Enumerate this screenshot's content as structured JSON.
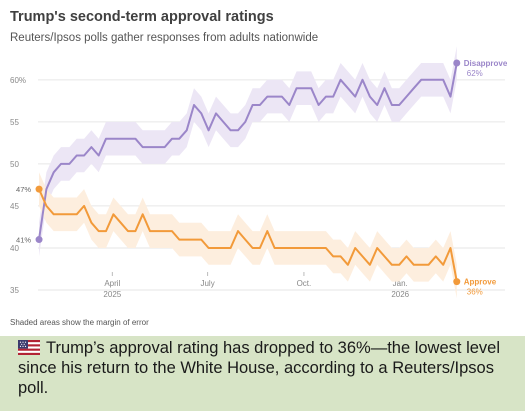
{
  "caption": {
    "text": "Trump’s approval rating has dropped to 36%—the lowest level since his return to the White House, according to a Reuters/Ipsos poll."
  },
  "chart_data": {
    "type": "line",
    "title": "Trump's second-term approval ratings",
    "subtitle": "Reuters/Ipsos polls gather responses from adults nationwide",
    "note": "Shaded areas show the margin of error",
    "xlabel": "",
    "ylabel": "",
    "ylim": [
      35,
      62
    ],
    "yticks": [
      {
        "value": 60,
        "label": "60%"
      },
      {
        "value": 55,
        "label": "55"
      },
      {
        "value": 50,
        "label": "50"
      },
      {
        "value": 45,
        "label": "45"
      },
      {
        "value": 40,
        "label": "40"
      },
      {
        "value": 35,
        "label": "35"
      }
    ],
    "xlim": [
      "2025-01-20",
      "2026-03-01"
    ],
    "xticks": [
      {
        "date": "2025-04-01",
        "label": "April",
        "sublabel": "2025"
      },
      {
        "date": "2025-07-01",
        "label": "July",
        "sublabel": ""
      },
      {
        "date": "2025-10-01",
        "label": "Oct.",
        "sublabel": ""
      },
      {
        "date": "2026-01-01",
        "label": "Jan.",
        "sublabel": "2026"
      }
    ],
    "grid": true,
    "legend": "direct labels at line ends",
    "series": [
      {
        "name": "Disapprove",
        "color": "#9b86c9",
        "band_color": "#ece6f5",
        "start_label": "41%",
        "end_value_label": "62%",
        "x": [
          "2025-01-21",
          "2025-01-28",
          "2025-02-04",
          "2025-02-11",
          "2025-02-19",
          "2025-02-26",
          "2025-03-05",
          "2025-03-12",
          "2025-03-19",
          "2025-03-26",
          "2025-04-02",
          "2025-04-09",
          "2025-04-16",
          "2025-04-23",
          "2025-04-30",
          "2025-05-07",
          "2025-05-14",
          "2025-05-21",
          "2025-05-28",
          "2025-06-04",
          "2025-06-11",
          "2025-06-18",
          "2025-06-25",
          "2025-07-02",
          "2025-07-09",
          "2025-07-16",
          "2025-07-23",
          "2025-07-30",
          "2025-08-06",
          "2025-08-13",
          "2025-08-20",
          "2025-08-27",
          "2025-09-03",
          "2025-09-10",
          "2025-09-17",
          "2025-09-24",
          "2025-10-01",
          "2025-10-08",
          "2025-10-15",
          "2025-10-22",
          "2025-10-29",
          "2025-11-05",
          "2025-11-12",
          "2025-11-19",
          "2025-11-26",
          "2025-12-03",
          "2025-12-10",
          "2025-12-17",
          "2025-12-24",
          "2025-12-31",
          "2026-01-07",
          "2026-01-14",
          "2026-01-21",
          "2026-01-28",
          "2026-02-04",
          "2026-02-11",
          "2026-02-18",
          "2026-02-24"
        ],
        "values": [
          41,
          47,
          49,
          50,
          50,
          51,
          51,
          52,
          51,
          53,
          53,
          53,
          53,
          53,
          52,
          52,
          52,
          52,
          53,
          53,
          54,
          57,
          56,
          54,
          56,
          55,
          54,
          54,
          55,
          57,
          57,
          58,
          58,
          58,
          57,
          59,
          59,
          59,
          57,
          58,
          58,
          60,
          59,
          58,
          60,
          58,
          57,
          59,
          57,
          57,
          58,
          59,
          60,
          60,
          60,
          60,
          58,
          62
        ]
      },
      {
        "name": "Approve",
        "color": "#f29a3a",
        "band_color": "#fdeede",
        "start_label": "47%",
        "end_value_label": "36%",
        "x": [
          "2025-01-21",
          "2025-01-28",
          "2025-02-04",
          "2025-02-11",
          "2025-02-19",
          "2025-02-26",
          "2025-03-05",
          "2025-03-12",
          "2025-03-19",
          "2025-03-26",
          "2025-04-02",
          "2025-04-09",
          "2025-04-16",
          "2025-04-23",
          "2025-04-30",
          "2025-05-07",
          "2025-05-14",
          "2025-05-21",
          "2025-05-28",
          "2025-06-04",
          "2025-06-11",
          "2025-06-18",
          "2025-06-25",
          "2025-07-02",
          "2025-07-09",
          "2025-07-16",
          "2025-07-23",
          "2025-07-30",
          "2025-08-06",
          "2025-08-13",
          "2025-08-20",
          "2025-08-27",
          "2025-09-03",
          "2025-09-10",
          "2025-09-17",
          "2025-09-24",
          "2025-10-01",
          "2025-10-08",
          "2025-10-15",
          "2025-10-22",
          "2025-10-29",
          "2025-11-05",
          "2025-11-12",
          "2025-11-19",
          "2025-11-26",
          "2025-12-03",
          "2025-12-10",
          "2025-12-17",
          "2025-12-24",
          "2025-12-31",
          "2026-01-07",
          "2026-01-14",
          "2026-01-21",
          "2026-01-28",
          "2026-02-04",
          "2026-02-11",
          "2026-02-18",
          "2026-02-24"
        ],
        "values": [
          47,
          45,
          44,
          44,
          44,
          44,
          45,
          43,
          42,
          42,
          44,
          43,
          42,
          42,
          44,
          42,
          42,
          42,
          42,
          41,
          41,
          41,
          41,
          40,
          40,
          40,
          40,
          42,
          41,
          40,
          40,
          42,
          40,
          40,
          40,
          40,
          40,
          40,
          40,
          40,
          39,
          39,
          38,
          40,
          39,
          38,
          40,
          39,
          38,
          38,
          39,
          38,
          38,
          38,
          39,
          38,
          40,
          36
        ]
      }
    ]
  }
}
